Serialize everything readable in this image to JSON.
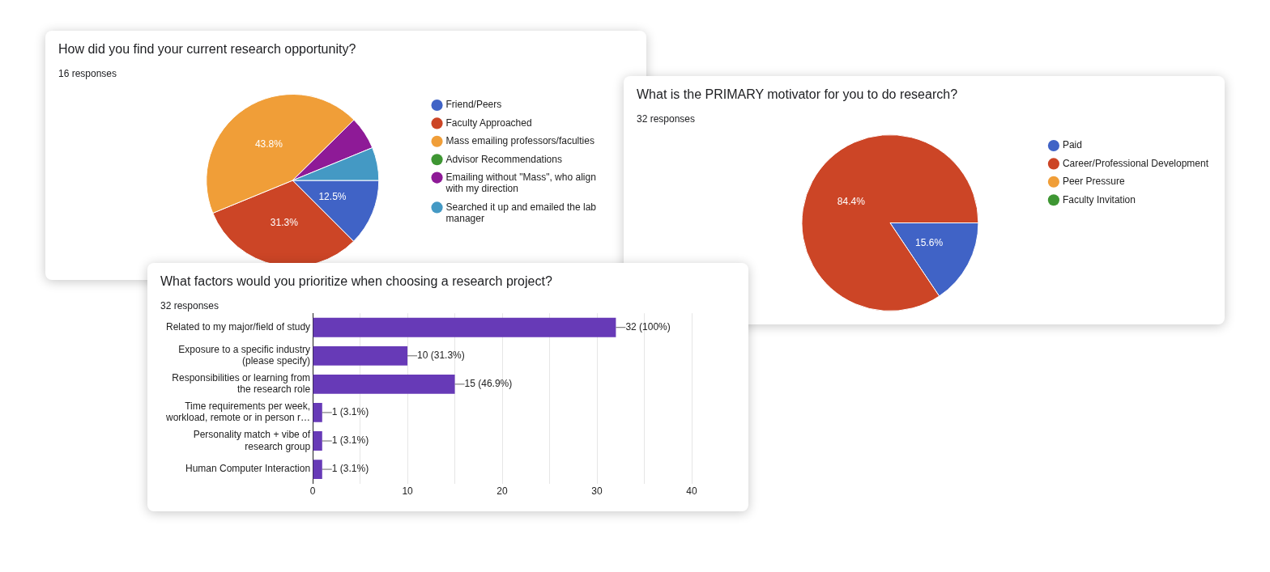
{
  "chart_data": [
    {
      "type": "pie",
      "title": "How did you find your current research opportunity?",
      "subtitle": "16 responses",
      "categories": [
        "Friend/Peers",
        "Faculty Approached",
        "Mass emailing professors/faculties",
        "Advisor Recommendations",
        "Emailing without \"Mass\", who align with my direction",
        "Searched it up and emailed the lab manager"
      ],
      "values": [
        12.5,
        31.3,
        43.8,
        0,
        6.2,
        6.2
      ],
      "colors": [
        "#4063c6",
        "#cc4526",
        "#f09e38",
        "#3e9633",
        "#8e1a97",
        "#4499c4"
      ],
      "value_labels": [
        "12.5%",
        "31.3%",
        "43.8%",
        null,
        null,
        null
      ],
      "legend": "right"
    },
    {
      "type": "pie",
      "title": "What is the PRIMARY motivator for you to do research?",
      "subtitle": "32 responses",
      "categories": [
        "Paid",
        "Career/Professional Development",
        "Peer Pressure",
        "Faculty Invitation"
      ],
      "values": [
        15.6,
        84.4,
        0,
        0
      ],
      "colors": [
        "#4063c6",
        "#cc4526",
        "#f09e38",
        "#3e9633"
      ],
      "value_labels": [
        "15.6%",
        "84.4%",
        null,
        null
      ],
      "legend": "right"
    },
    {
      "type": "bar",
      "orientation": "horizontal",
      "title": "What factors would you prioritize when choosing a research project?",
      "subtitle": "32 responses",
      "categories": [
        "Related to my major/field of study",
        "Exposure to a specific industry (please specify)",
        "Responsibilities or learning from the research role",
        "Time requirements per week, workload, remote or in person r…",
        "Personality match + vibe of research group",
        "Human Computer Interaction"
      ],
      "values": [
        32,
        10,
        15,
        1,
        1,
        1
      ],
      "color": "#673ab7",
      "value_labels": [
        "32 (100%)",
        "10 (31.3%)",
        "15 (46.9%)",
        "1 (3.1%)",
        "1 (3.1%)",
        "1 (3.1%)"
      ],
      "xlim": [
        0,
        40
      ],
      "xticks": [
        0,
        {
          "value": 5,
          "label": null
        },
        10,
        {
          "value": 15,
          "label": null
        },
        20,
        {
          "value": 25,
          "label": null
        },
        30,
        {
          "value": 35,
          "label": null
        },
        40
      ],
      "grid": "x"
    }
  ]
}
